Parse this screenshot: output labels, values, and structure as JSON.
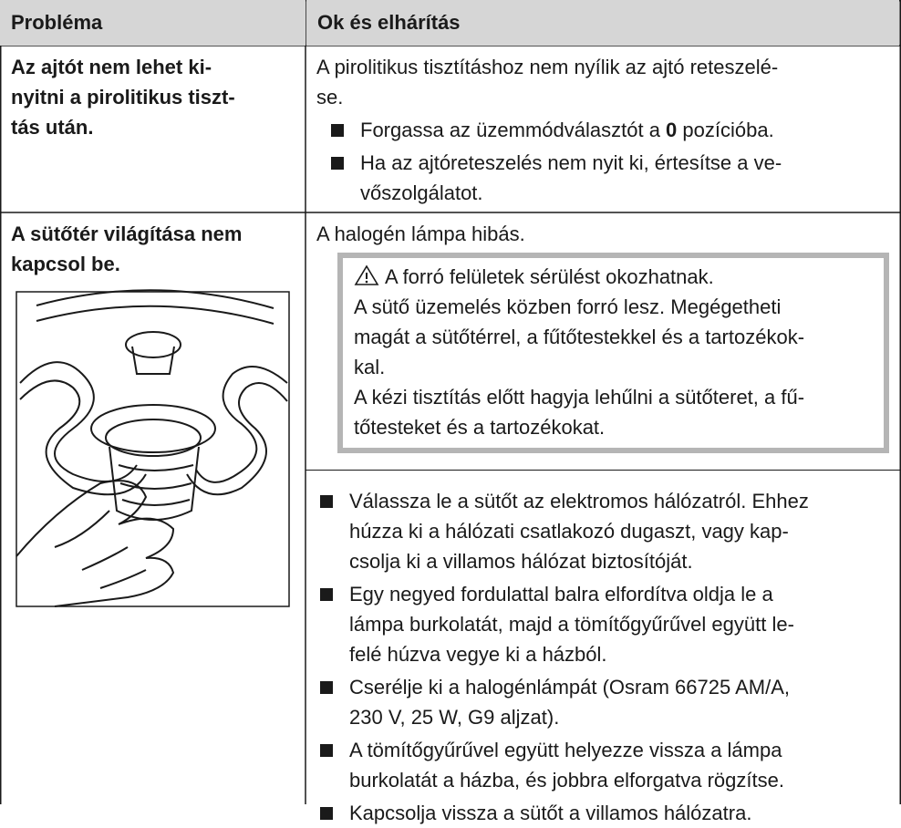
{
  "table": {
    "header": [
      "Probléma",
      "Ok és elhárítás"
    ],
    "rows": [
      {
        "problem": [
          "Az ajtót nem lehet ki-",
          "nyitni a pirolitikus tiszt-",
          "tás után."
        ],
        "cause": [
          "A pirolitikus tisztításhoz nem nyílik az ajtó reteszelé-",
          "se."
        ],
        "steps": [
          {
            "lines": [
              {
                "before": "Forgassa az üzemmódválasztót a ",
                "bold": "0",
                "after": " pozícióba."
              }
            ]
          },
          {
            "lines": [
              "Ha az ajtóreteszelés nem nyit ki, értesítse a ve-",
              "vőszolgálatot."
            ]
          }
        ]
      },
      {
        "problem": [
          "A sütőtér világítása nem",
          "kapcsol be."
        ],
        "cause": [
          "A halogén lámpa hibás."
        ],
        "warning": {
          "title": "A forró felületek sérülést okozhatnak.",
          "lines": [
            "A sütő üzemelés közben forró lesz. Megégetheti",
            "magát a sütőtérrel, a fűtőtestekkel és a tartozékok-",
            "kal.",
            "A kézi tisztítás előtt hagyja lehűlni a sütőteret, a fű-",
            "tőtesteket és a tartozékokat."
          ]
        },
        "steps": [
          {
            "lines": [
              "Válassza le a sütőt az elektromos hálózatról. Ehhez",
              "húzza ki a hálózati csatlakozó dugaszt, vagy kap-",
              "csolja ki a villamos hálózat biztosítóját."
            ]
          },
          {
            "lines": [
              "Egy negyed fordulattal balra elfordítva oldja le a",
              "lámpa burkolatát, majd a tömítőgyűrűvel együtt le-",
              "felé húzva vegye ki a házból."
            ]
          },
          {
            "lines": [
              "Cserélje ki a halogénlámpát (Osram 66725 AM/A,",
              "230 V, 25 W, G9 aljzat)."
            ]
          },
          {
            "lines": [
              "A tömítőgyűrűvel együtt helyezze vissza a lámpa",
              "burkolatát a házba, és jobbra elforgatva rögzítse."
            ]
          },
          {
            "lines": [
              "Kapcsolja vissza a sütőt a villamos hálózatra."
            ]
          }
        ]
      }
    ]
  }
}
